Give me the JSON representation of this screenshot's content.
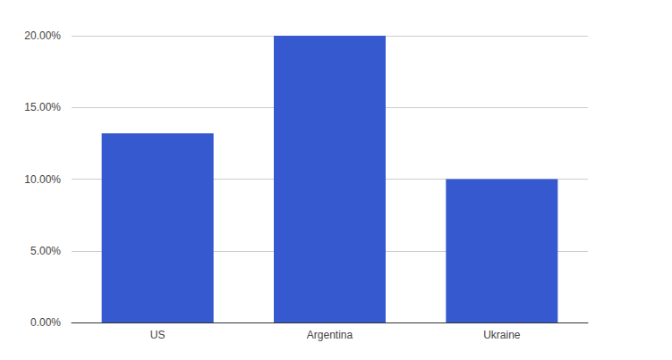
{
  "chart_data": {
    "type": "bar",
    "categories": [
      "US",
      "Argentina",
      "Ukraine"
    ],
    "values": [
      13.2,
      20,
      10
    ],
    "color": "#3759d0",
    "ylim": [
      0,
      20
    ],
    "yticks": [
      {
        "value": 0,
        "label": "0.00%"
      },
      {
        "value": 5,
        "label": "5.00%"
      },
      {
        "value": 10,
        "label": "10.00%"
      },
      {
        "value": 15,
        "label": "15.00%"
      },
      {
        "value": 20,
        "label": "20.00%"
      }
    ],
    "grid": true
  }
}
